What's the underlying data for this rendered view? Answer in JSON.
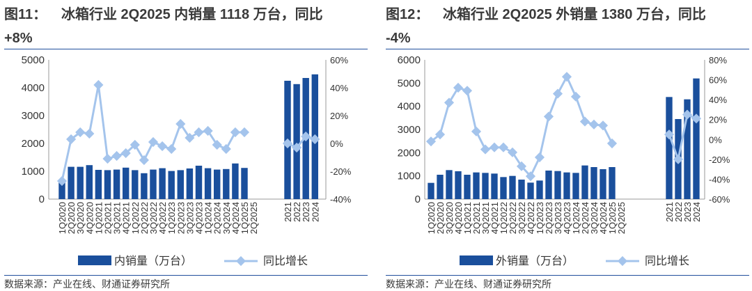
{
  "source": "数据来源：产业在线、财通证券研究所",
  "colors": {
    "bar": "#1a4f9c",
    "line": "#a4c4ec",
    "rule": "#1f4e9c"
  },
  "panels": [
    {
      "fig_num": "图11：",
      "title_l1": "冰箱行业 2Q2025 内销量 1118 万台，同比",
      "title_l2": "+8%",
      "chart_data": {
        "type": "bar+line",
        "categories": [
          "1Q2020",
          "2Q2020",
          "3Q2020",
          "4Q2020",
          "1Q2021",
          "2Q2021",
          "3Q2021",
          "4Q2021",
          "1Q2022",
          "2Q2022",
          "3Q2022",
          "4Q2022",
          "1Q2023",
          "2Q2023",
          "3Q2023",
          "4Q2023",
          "1Q2024",
          "2Q2024",
          "3Q2024",
          "4Q2024",
          "1Q2025",
          "2Q2025"
        ],
        "annual_categories": [
          "2021",
          "2022",
          "2023",
          "2024"
        ],
        "series": [
          {
            "name": "内销量（万台）",
            "type": "bar",
            "axis": "left",
            "values": [
              620,
              1160,
              1160,
              1220,
              1050,
              1040,
              1060,
              1130,
              1040,
              930,
              1060,
              1110,
              1010,
              1040,
              1100,
              1200,
              1110,
              1060,
              1080,
              1280,
              1120,
              null
            ],
            "annual_values": [
              4250,
              4130,
              4350,
              4480
            ]
          },
          {
            "name": "同比增长",
            "type": "line",
            "axis": "right",
            "values": [
              -27,
              3,
              8,
              7,
              42,
              -11,
              -9,
              -7,
              -1,
              -12,
              1,
              -2,
              -4,
              14,
              4,
              8,
              9,
              -1,
              -4,
              8,
              8,
              null
            ],
            "annual_values": [
              0,
              -3,
              5,
              3
            ]
          }
        ],
        "yleft": {
          "min": 0,
          "max": 5000,
          "ticks": [
            "0",
            "1000",
            "2000",
            "3000",
            "4000",
            "5000"
          ]
        },
        "yright": {
          "min": -40,
          "max": 60,
          "ticks": [
            "-40%",
            "-20%",
            "0%",
            "20%",
            "40%",
            "60%"
          ]
        }
      }
    },
    {
      "fig_num": "图12：",
      "title_l1": "冰箱行业 2Q2025 外销量 1380 万台，同比",
      "title_l2": "-4%",
      "chart_data": {
        "type": "bar+line",
        "categories": [
          "1Q2020",
          "2Q2020",
          "3Q2020",
          "4Q2020",
          "1Q2021",
          "2Q2021",
          "3Q2021",
          "4Q2021",
          "1Q2022",
          "2Q2022",
          "3Q2022",
          "4Q2022",
          "1Q2023",
          "2Q2023",
          "3Q2023",
          "4Q2023",
          "1Q2024",
          "2Q2024",
          "3Q2024",
          "4Q2024",
          "1Q2025",
          "2Q2025"
        ],
        "annual_categories": [
          "2021",
          "2022",
          "2023",
          "2024"
        ],
        "series": [
          {
            "name": "外销量（万台）",
            "type": "bar",
            "axis": "left",
            "values": [
              700,
              1050,
              1250,
              1200,
              1050,
              1150,
              1130,
              1100,
              950,
              1000,
              840,
              710,
              800,
              1230,
              1210,
              1150,
              1130,
              1450,
              1380,
              1290,
              1380,
              null
            ],
            "annual_values": [
              4400,
              3450,
              4300,
              5200
            ]
          },
          {
            "name": "同比增长",
            "type": "line",
            "axis": "right",
            "values": [
              -2,
              5,
              37,
              52,
              49,
              8,
              -10,
              -8,
              -8,
              -13,
              -27,
              -37,
              -18,
              23,
              46,
              63,
              43,
              18,
              15,
              14,
              -4,
              null
            ],
            "annual_values": [
              5,
              -20,
              25,
              21
            ]
          }
        ],
        "yleft": {
          "min": 0,
          "max": 6000,
          "ticks": [
            "0",
            "1000",
            "2000",
            "3000",
            "4000",
            "5000",
            "6000"
          ]
        },
        "yright": {
          "min": -60,
          "max": 80,
          "ticks": [
            "-60%",
            "-40%",
            "-20%",
            "0%",
            "20%",
            "40%",
            "60%",
            "80%"
          ]
        }
      }
    }
  ]
}
